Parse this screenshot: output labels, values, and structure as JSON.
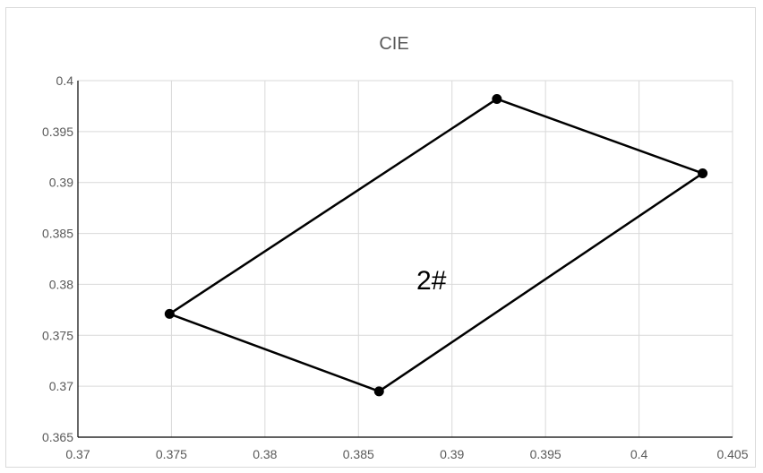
{
  "chart_data": {
    "type": "scatter",
    "title": "CIE",
    "xlabel": "",
    "ylabel": "",
    "xlim": [
      0.37,
      0.405
    ],
    "ylim": [
      0.365,
      0.4
    ],
    "xticks": [
      "0.37",
      "0.375",
      "0.38",
      "0.385",
      "0.39",
      "0.395",
      "0.4",
      "0.405"
    ],
    "yticks": [
      "0.365",
      "0.37",
      "0.375",
      "0.38",
      "0.385",
      "0.39",
      "0.395",
      "0.4"
    ],
    "grid": true,
    "legend": "none",
    "closed_polygon": true,
    "series": [
      {
        "x": [
          0.3749,
          0.3924,
          0.4034,
          0.3861,
          0.3749
        ],
        "y": [
          0.3771,
          0.3982,
          0.3909,
          0.3695,
          0.3771
        ]
      }
    ],
    "annotations": [
      {
        "text": "2#",
        "x": 0.3889,
        "y": 0.3795
      }
    ],
    "colors": {
      "line": "#000000",
      "marker": "#000000",
      "grid": "#d9d9d9",
      "axis": "#000000",
      "text": "#595959"
    }
  }
}
